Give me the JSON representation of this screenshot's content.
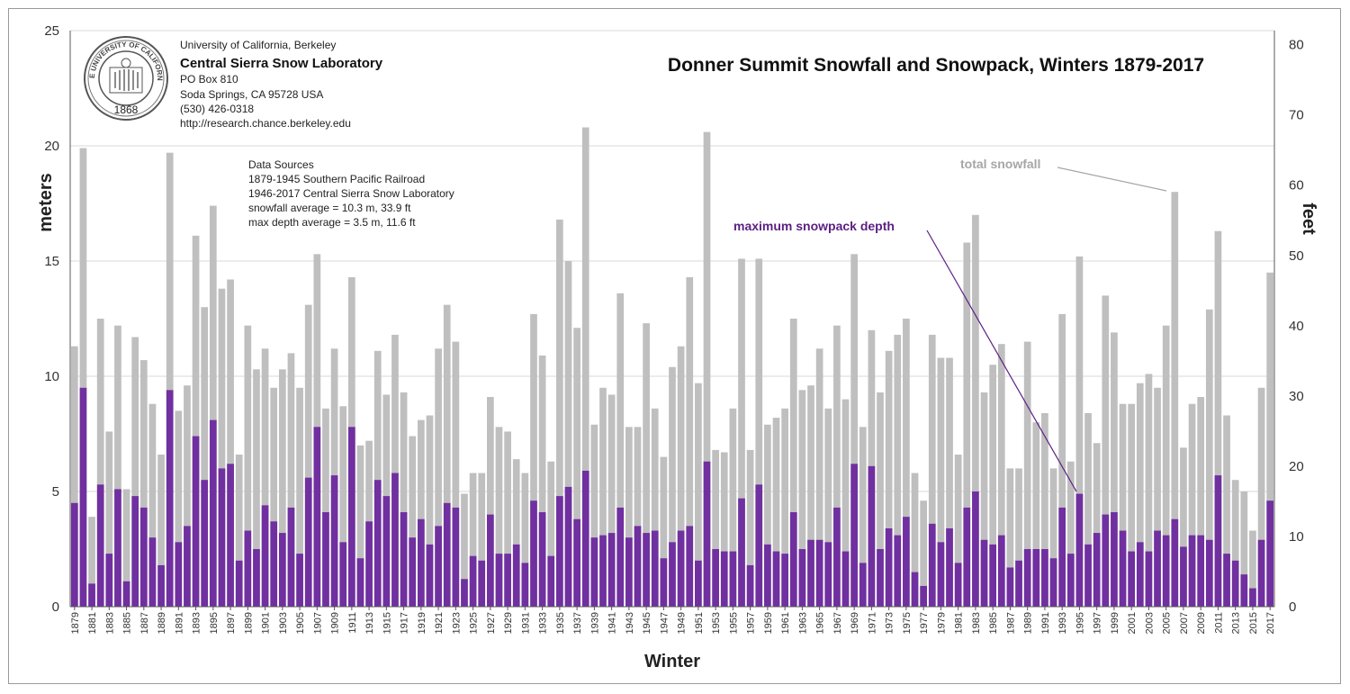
{
  "chart_data": {
    "type": "bar",
    "title": "Donner Summit Snowfall and Snowpack, Winters 1879-2017",
    "xlabel": "Winter",
    "ylabel": "meters",
    "y2label": "feet",
    "ylim": [
      0,
      25
    ],
    "y2lim": [
      0,
      82
    ],
    "yticks": [
      "0",
      "5",
      "10",
      "15",
      "20",
      "25"
    ],
    "y2ticks": [
      "0",
      "10",
      "20",
      "30",
      "40",
      "50",
      "60",
      "70",
      "80"
    ],
    "grid": true,
    "x_start": 1879,
    "x_end": 2017,
    "xtick_step": 2,
    "colors": {
      "total_snowfall": "#bfbfbf",
      "max_snowpack": "#7030a0",
      "annotation_line": "#a6a6a6",
      "annotation_purple_line": "#5b1f82"
    },
    "series": [
      {
        "name": "total snowfall",
        "values": [
          11.3,
          19.9,
          3.9,
          12.5,
          7.6,
          12.2,
          5.1,
          11.7,
          10.7,
          8.8,
          6.6,
          19.7,
          8.5,
          9.6,
          16.1,
          13.0,
          17.4,
          13.8,
          14.2,
          6.6,
          12.2,
          10.3,
          11.2,
          9.5,
          10.3,
          11.0,
          9.5,
          13.1,
          15.3,
          8.6,
          11.2,
          8.7,
          14.3,
          7.0,
          7.2,
          11.1,
          9.2,
          11.8,
          9.3,
          7.4,
          8.1,
          8.3,
          11.2,
          13.1,
          11.5,
          4.9,
          5.8,
          5.8,
          9.1,
          7.8,
          7.6,
          6.4,
          5.8,
          12.7,
          10.9,
          6.3,
          16.8,
          15.0,
          12.1,
          20.8,
          7.9,
          9.5,
          9.2,
          13.6,
          7.8,
          7.8,
          12.3,
          8.6,
          6.5,
          10.4,
          11.3,
          14.3,
          9.7,
          20.6,
          6.8,
          6.7,
          8.6,
          15.1,
          6.8,
          15.1,
          7.9,
          8.2,
          8.6,
          12.5,
          9.4,
          9.6,
          11.2,
          8.6,
          12.2,
          9.0,
          15.3,
          7.8,
          12.0,
          9.3,
          11.1,
          11.8,
          12.5,
          5.8,
          4.6,
          11.8,
          10.8,
          10.8,
          6.6,
          15.8,
          17.0,
          9.3,
          10.5,
          11.4,
          6.0,
          6.0,
          11.5,
          8.0,
          8.4,
          6.0,
          12.7,
          6.3,
          15.2,
          8.4,
          7.1,
          13.5,
          11.9,
          8.8,
          8.8,
          9.7,
          10.1,
          9.5,
          12.2,
          18.0,
          6.9,
          8.8,
          9.1,
          12.9,
          16.3,
          8.3,
          5.5,
          5.0,
          3.3,
          9.5,
          14.5
        ]
      },
      {
        "name": "maximum snowpack depth",
        "values": [
          4.5,
          9.5,
          1.0,
          5.3,
          2.3,
          5.1,
          1.1,
          4.8,
          4.3,
          3.0,
          1.8,
          9.4,
          2.8,
          3.5,
          7.4,
          5.5,
          8.1,
          6.0,
          6.2,
          2.0,
          3.3,
          2.5,
          4.4,
          3.7,
          3.2,
          4.3,
          2.3,
          5.6,
          7.8,
          4.1,
          5.7,
          2.8,
          7.8,
          2.1,
          3.7,
          5.5,
          4.8,
          5.8,
          4.1,
          3.0,
          3.8,
          2.7,
          3.5,
          4.5,
          4.3,
          1.2,
          2.2,
          2.0,
          4.0,
          2.3,
          2.3,
          2.7,
          1.9,
          4.6,
          4.1,
          2.2,
          4.8,
          5.2,
          3.8,
          5.9,
          3.0,
          3.1,
          3.2,
          4.3,
          3.0,
          3.5,
          3.2,
          3.3,
          2.1,
          2.8,
          3.3,
          3.5,
          2.0,
          6.3,
          2.5,
          2.4,
          2.4,
          4.7,
          1.8,
          5.3,
          2.7,
          2.4,
          2.3,
          4.1,
          2.5,
          2.9,
          2.9,
          2.8,
          4.3,
          2.4,
          6.2,
          1.9,
          6.1,
          2.5,
          3.4,
          3.1,
          3.9,
          1.5,
          0.9,
          3.6,
          2.8,
          3.4,
          1.9,
          4.3,
          5.0,
          2.9,
          2.7,
          3.1,
          1.7,
          2.0,
          2.5,
          2.5,
          2.5,
          2.1,
          4.3,
          2.3,
          4.9,
          2.7,
          3.2,
          4.0,
          4.1,
          3.3,
          2.4,
          2.8,
          2.4,
          3.3,
          3.1,
          3.8,
          2.6,
          3.1,
          3.1,
          2.9,
          5.7,
          2.3,
          2.0,
          1.4,
          0.8,
          2.9,
          4.6
        ]
      }
    ],
    "annotations": {
      "total_snowfall_label": "total snowfall",
      "snowpack_label": "maximum snowpack depth"
    }
  },
  "info_block": {
    "line1": "University of California, Berkeley",
    "line2": "Central Sierra Snow Laboratory",
    "line3": "PO Box 810",
    "line4": "Soda Springs, CA 95728 USA",
    "line5": "(530) 426-0318",
    "line6": "http://research.chance.berkeley.edu"
  },
  "data_sources": {
    "line1": "Data Sources",
    "line2": "1879-1945 Southern Pacific Railroad",
    "line3": "1946-2017 Central Sierra Snow Laboratory",
    "line4": "snowfall average = 10.3 m, 33.9 ft",
    "line5": "max depth average  = 3.5 m, 11.6 ft"
  },
  "seal": {
    "text": "THE UNIVERSITY OF CALIFORNIA",
    "year": "1868",
    "icon": "university-seal-icon"
  }
}
